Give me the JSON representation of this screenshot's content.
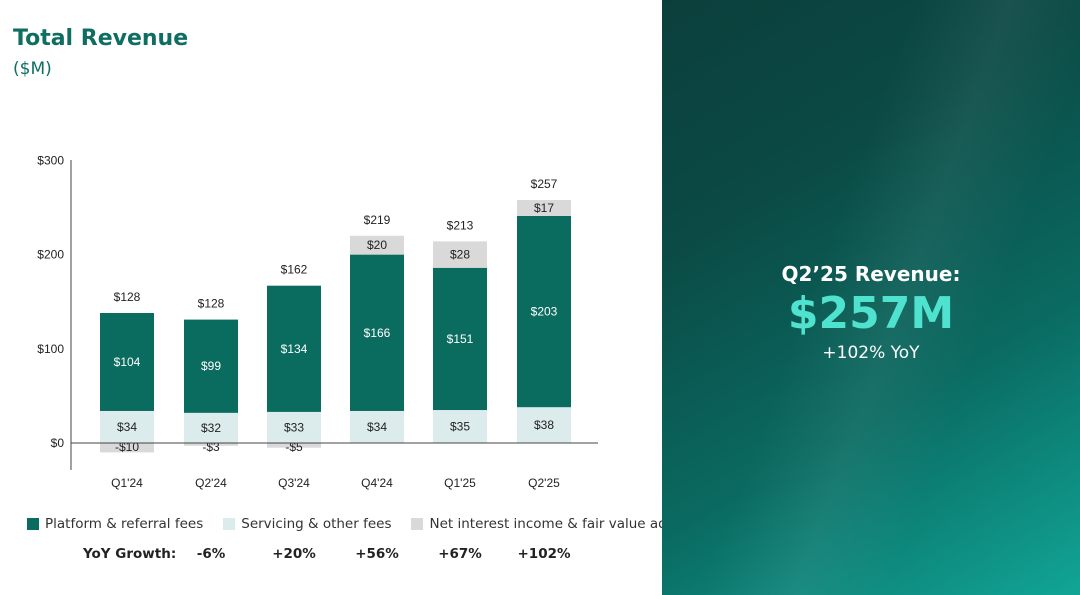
{
  "left_panel": {
    "title": "Total Revenue",
    "subtitle": "($M)"
  },
  "chart_data": {
    "type": "bar",
    "stacked": true,
    "categories": [
      "Q1'24",
      "Q2'24",
      "Q3'24",
      "Q4'24",
      "Q1'25",
      "Q2'25"
    ],
    "series": [
      {
        "name": "Platform & referral fees",
        "color": "#0a6b5f",
        "values": [
          104,
          99,
          134,
          166,
          151,
          203
        ]
      },
      {
        "name": "Servicing & other fees",
        "color": "#dcecec",
        "values": [
          34,
          32,
          33,
          34,
          35,
          38
        ]
      },
      {
        "name": "Net interest income & fair value adj.",
        "color": "#d9d9d9",
        "values": [
          -10,
          -3,
          -5,
          20,
          28,
          17
        ]
      }
    ],
    "value_labels": {
      "Platform & referral fees": [
        "$104",
        "$99",
        "$134",
        "$166",
        "$151",
        "$203"
      ],
      "Servicing & other fees": [
        "$34",
        "$32",
        "$33",
        "$34",
        "$35",
        "$38"
      ],
      "Net interest income & fair value adj.": [
        "-$10",
        "-$3",
        "-$5",
        "$20",
        "$28",
        "$17"
      ]
    },
    "totals": [
      128,
      128,
      162,
      219,
      213,
      257
    ],
    "total_labels": [
      "$128",
      "$128",
      "$162",
      "$219",
      "$213",
      "$257"
    ],
    "y_ticks": [
      0,
      100,
      200,
      300
    ],
    "y_tick_labels": [
      "$0",
      "$100",
      "$200",
      "$300"
    ],
    "ylim": [
      -30,
      300
    ],
    "legend_position": "bottom"
  },
  "yoy": {
    "label": "YoY Growth:",
    "values": [
      "-6%",
      "+20%",
      "+56%",
      "+67%",
      "+102%"
    ]
  },
  "callout": {
    "title": "Q2’25 Revenue:",
    "value": "$257M",
    "sub": "+102% YoY"
  },
  "colors": {
    "brand_green": "#0f6e62",
    "accent_teal": "#4fe3cf"
  }
}
